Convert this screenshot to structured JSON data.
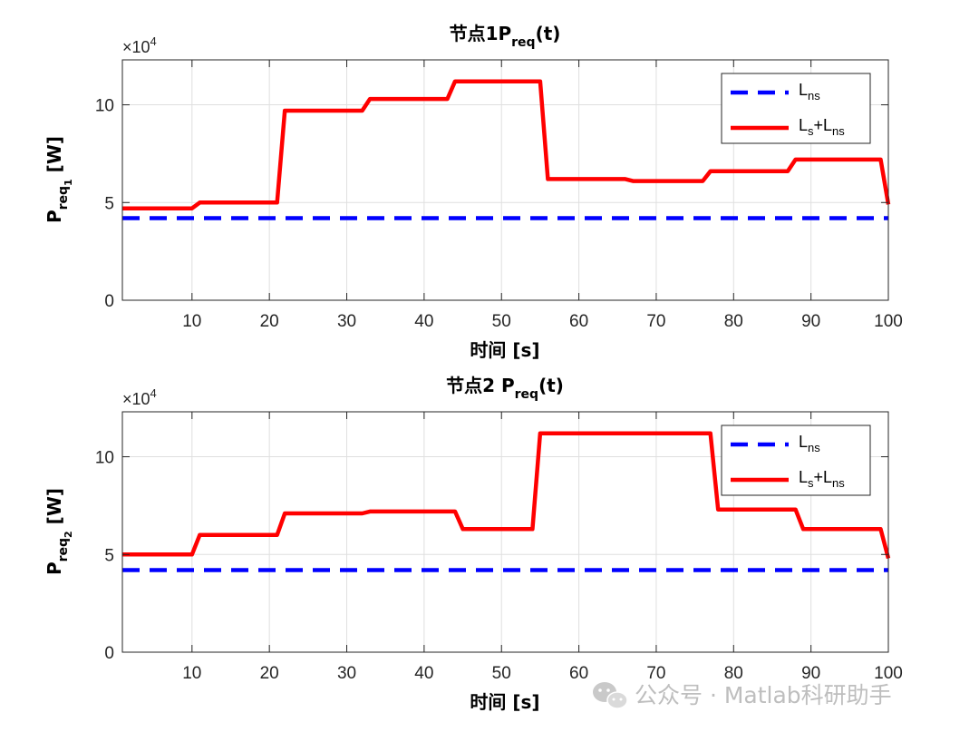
{
  "watermark": {
    "icon": "wechat-icon",
    "text": "公众号 · Matlab科研助手"
  },
  "chart_data": [
    {
      "type": "line",
      "title_main": "节点1P",
      "title_sub": "req",
      "title_tail": "(t)",
      "xlabel_main": "时间",
      "xlabel_tail": " [s]",
      "ylabel_main": "P",
      "ylabel_sub": "req",
      "ylabel_subsub": "1",
      "ylabel_tail": " [W]",
      "exponent_prefix": "×10",
      "exponent_power": "4",
      "xlim": [
        1,
        100
      ],
      "ylim": [
        0,
        12.3
      ],
      "xticks": [
        10,
        20,
        30,
        40,
        50,
        60,
        70,
        80,
        90,
        100
      ],
      "yticks": [
        0,
        5,
        10
      ],
      "grid": true,
      "legend_position": "top-right",
      "series": [
        {
          "name": "L_ns",
          "label_main": "L",
          "label_sub": "ns",
          "color": "#0000ff",
          "style": "dashed",
          "x": [
            1,
            100
          ],
          "y": [
            4.2,
            4.2
          ]
        },
        {
          "name": "L_s+L_ns",
          "label_parts": [
            [
              "L",
              false
            ],
            [
              "s",
              true
            ],
            [
              "+L",
              false
            ],
            [
              "ns",
              true
            ]
          ],
          "color": "#ff0000",
          "style": "solid",
          "x": [
            1,
            10,
            11,
            21,
            22,
            32,
            33,
            43,
            44,
            55,
            56,
            66,
            67,
            76,
            77,
            87,
            88,
            99,
            100
          ],
          "y": [
            4.7,
            4.7,
            5.0,
            5.0,
            9.7,
            9.7,
            10.3,
            10.3,
            11.2,
            11.2,
            6.2,
            6.2,
            6.1,
            6.1,
            6.6,
            6.6,
            7.2,
            7.2,
            4.9
          ]
        }
      ]
    },
    {
      "type": "line",
      "title_main": "节点2 P",
      "title_sub": "req",
      "title_tail": "(t)",
      "xlabel_main": "时间",
      "xlabel_tail": " [s]",
      "ylabel_main": "P",
      "ylabel_sub": "req",
      "ylabel_subsub": "2",
      "ylabel_tail": " [W]",
      "exponent_prefix": "×10",
      "exponent_power": "4",
      "xlim": [
        1,
        100
      ],
      "ylim": [
        0,
        12.3
      ],
      "xticks": [
        10,
        20,
        30,
        40,
        50,
        60,
        70,
        80,
        90,
        100
      ],
      "yticks": [
        0,
        5,
        10
      ],
      "grid": true,
      "legend_position": "top-right",
      "series": [
        {
          "name": "L_ns",
          "label_main": "L",
          "label_sub": "ns",
          "color": "#0000ff",
          "style": "dashed",
          "x": [
            1,
            100
          ],
          "y": [
            4.2,
            4.2
          ]
        },
        {
          "name": "L_s+L_ns",
          "label_parts": [
            [
              "L",
              false
            ],
            [
              "s",
              true
            ],
            [
              "+L",
              false
            ],
            [
              "ns",
              true
            ]
          ],
          "color": "#ff0000",
          "style": "solid",
          "x": [
            1,
            10,
            11,
            21,
            22,
            32,
            33,
            44,
            45,
            54,
            55,
            77,
            78,
            88,
            89,
            99,
            100
          ],
          "y": [
            5.0,
            5.0,
            6.0,
            6.0,
            7.1,
            7.1,
            7.2,
            7.2,
            6.3,
            6.3,
            11.2,
            11.2,
            7.3,
            7.3,
            6.3,
            6.3,
            4.8
          ]
        }
      ]
    }
  ]
}
